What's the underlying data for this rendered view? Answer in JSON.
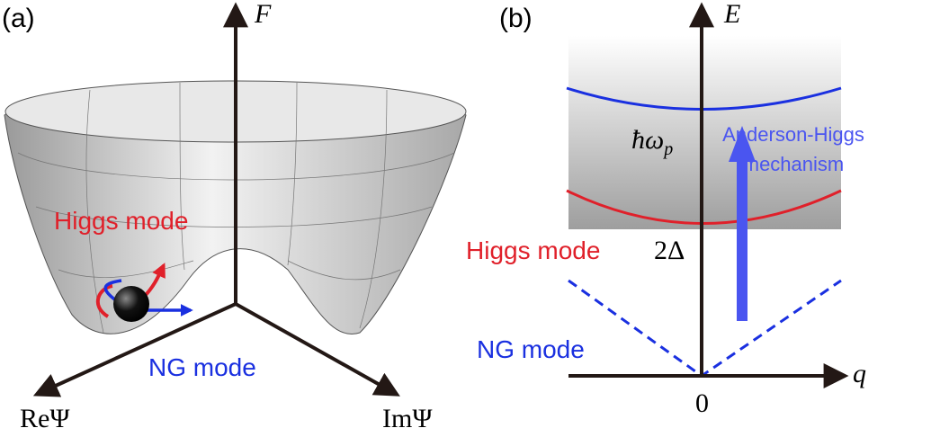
{
  "panel_a": {
    "label": "(a)",
    "axes": {
      "vertical": "F",
      "left": "ReΨ",
      "right": "ImΨ"
    },
    "higgs_label": "Higgs mode",
    "ng_label": "NG mode"
  },
  "panel_b": {
    "label": "(b)",
    "axes": {
      "vertical": "E",
      "horizontal": "q",
      "origin": "0"
    },
    "plasma_label": {
      "main": "ħω",
      "sub": "p"
    },
    "gap_label": "2Δ",
    "higgs_label": "Higgs mode",
    "ng_label": "NG mode",
    "mechanism_label": [
      "Anderson-Higgs",
      "mechanism"
    ]
  }
}
